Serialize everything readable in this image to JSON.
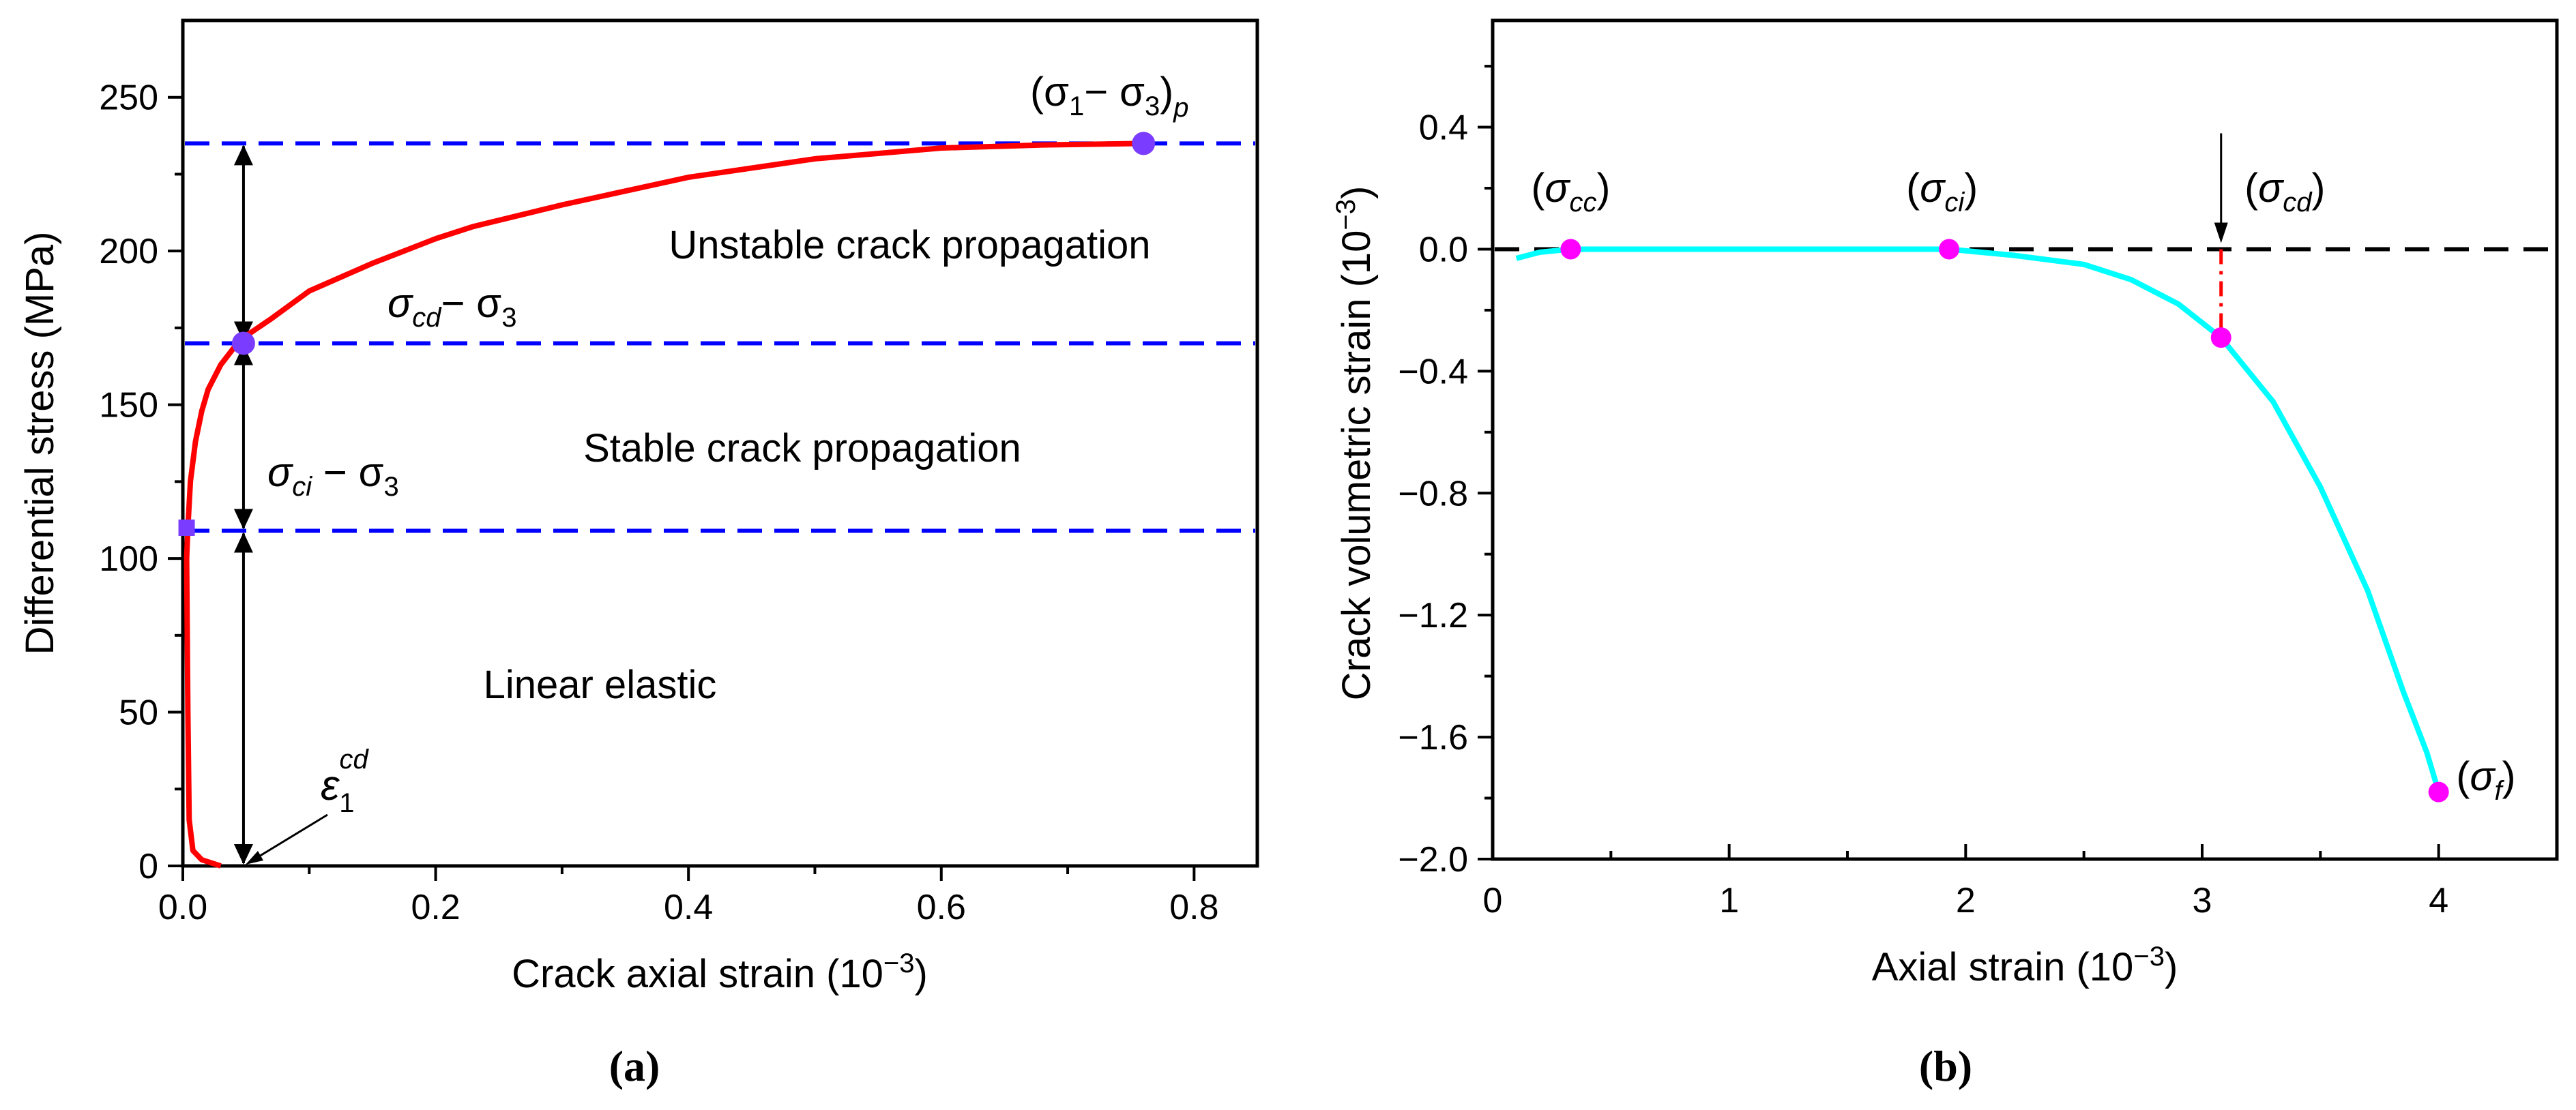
{
  "colors": {
    "axis": "#000000",
    "threshold": "#0000ff",
    "stress_curve": "#ff0000",
    "volumetric_curve": "#00ffff",
    "marker_purple": "#7a3cff",
    "marker_magenta": "#ff00ff",
    "cd_drop": "#ff0000"
  },
  "chart_data": [
    {
      "panel": "a",
      "panel_label": "(a)",
      "type": "line",
      "xlabel": "Crack axial strain (10",
      "xlabel_exp": "−3",
      "xlabel_tail": ")",
      "ylabel": "Differential stress (MPa)",
      "xlim": [
        0,
        0.85
      ],
      "ylim": [
        0,
        275
      ],
      "xticks": [
        {
          "v": 0,
          "t": "0.0"
        },
        {
          "v": 0.2,
          "t": "0.2"
        },
        {
          "v": 0.4,
          "t": "0.4"
        },
        {
          "v": 0.6,
          "t": "0.6"
        },
        {
          "v": 0.8,
          "t": "0.8"
        }
      ],
      "xminor": [
        0.1,
        0.3,
        0.5,
        0.7
      ],
      "yticks": [
        {
          "v": 0,
          "t": "0"
        },
        {
          "v": 50,
          "t": "50"
        },
        {
          "v": 100,
          "t": "100"
        },
        {
          "v": 150,
          "t": "150"
        },
        {
          "v": 200,
          "t": "200"
        },
        {
          "v": 250,
          "t": "250"
        }
      ],
      "yminor": [
        25,
        75,
        125,
        175,
        225
      ],
      "series": [
        {
          "name": "Differential stress",
          "x": [
            0.03,
            0.015,
            0.008,
            0.005,
            0.004,
            0.003,
            0.004,
            0.006,
            0.01,
            0.015,
            0.02,
            0.03,
            0.045,
            0.07,
            0.1,
            0.15,
            0.2,
            0.23,
            0.3,
            0.4,
            0.5,
            0.6,
            0.68,
            0.76
          ],
          "y": [
            0,
            2,
            5,
            15,
            50,
            100,
            110,
            125,
            138,
            148,
            155,
            163,
            171,
            178,
            187,
            196,
            204,
            208,
            215,
            224,
            230,
            233.5,
            234.5,
            235
          ]
        }
      ],
      "thresholds": [
        {
          "name": "peak",
          "y": 235
        },
        {
          "name": "damage",
          "y": 170
        },
        {
          "name": "initiation",
          "y": 109
        }
      ],
      "markers": [
        {
          "name": "initiation",
          "x": 0.003,
          "y": 110,
          "shape": "square"
        },
        {
          "name": "damage",
          "x": 0.048,
          "y": 170,
          "shape": "circle"
        },
        {
          "name": "peak",
          "x": 0.76,
          "y": 235,
          "shape": "circle"
        }
      ],
      "arrow_x": 0.048,
      "regions": [
        {
          "text": "Unstable crack propagation",
          "x": 0.575,
          "y": 202
        },
        {
          "text": "Stable crack propagation",
          "x": 0.49,
          "y": 136
        },
        {
          "text": "Linear elastic",
          "x": 0.33,
          "y": 59
        }
      ],
      "annotations": {
        "peak_label": {
          "base": "(σ",
          "sub1": "1",
          "mid": "− σ",
          "sub2": "3",
          "close": ")",
          "sub3": "p"
        },
        "cd_label": {
          "base": "σ",
          "sub1": "cd",
          "mid": "− σ",
          "sub2": "3"
        },
        "ci_label": {
          "base": "σ",
          "sub1": "ci",
          "mid": " − σ",
          "sub2": "3"
        },
        "eps_label": {
          "base": "ε",
          "sub": "1",
          "sup": "cd"
        }
      }
    },
    {
      "panel": "b",
      "panel_label": "(b)",
      "type": "line",
      "xlabel": "Axial strain (10",
      "xlabel_exp": "−3",
      "xlabel_tail": ")",
      "ylabel": "Crack volumetric strain (10",
      "ylabel_exp": "−3",
      "ylabel_tail": ")",
      "xlim": [
        0,
        4.5
      ],
      "ylim": [
        -2.0,
        0.75
      ],
      "xticks": [
        {
          "v": 0,
          "t": "0"
        },
        {
          "v": 1,
          "t": "1"
        },
        {
          "v": 2,
          "t": "2"
        },
        {
          "v": 3,
          "t": "3"
        },
        {
          "v": 4,
          "t": "4"
        }
      ],
      "xminor": [
        0.5,
        1.5,
        2.5,
        3.5
      ],
      "yticks": [
        {
          "v": 0.4,
          "t": "0.4"
        },
        {
          "v": 0,
          "t": "0.0"
        },
        {
          "v": -0.4,
          "t": "−0.4"
        },
        {
          "v": -0.8,
          "t": "−0.8"
        },
        {
          "v": -1.2,
          "t": "−1.2"
        },
        {
          "v": -1.6,
          "t": "−1.6"
        },
        {
          "v": -2.0,
          "t": "−2.0"
        }
      ],
      "yminor": [
        0.6,
        0.2,
        -0.2,
        -0.6,
        -1.0,
        -1.4,
        -1.8
      ],
      "series": [
        {
          "name": "Crack volumetric strain",
          "x": [
            0.1,
            0.2,
            0.33,
            0.6,
            1.0,
            1.5,
            1.93,
            2.2,
            2.5,
            2.7,
            2.9,
            3.08,
            3.3,
            3.5,
            3.7,
            3.85,
            3.95,
            4.0
          ],
          "y": [
            -0.03,
            -0.01,
            0,
            0,
            0,
            0,
            0,
            -0.02,
            -0.05,
            -0.1,
            -0.18,
            -0.29,
            -0.5,
            -0.78,
            -1.12,
            -1.45,
            -1.65,
            -1.78
          ]
        }
      ],
      "baseline_y": 0,
      "cd_drop": {
        "x": 3.08,
        "y_top": 0,
        "y_bottom": -0.29
      },
      "cd_arrow": {
        "x": 3.08,
        "y_from": 0.38,
        "y_to": 0.02
      },
      "markers": [
        {
          "name": "cc",
          "x": 0.33,
          "y": 0
        },
        {
          "name": "ci",
          "x": 1.93,
          "y": 0
        },
        {
          "name": "cd",
          "x": 3.08,
          "y": -0.29
        },
        {
          "name": "f",
          "x": 4.0,
          "y": -1.78
        }
      ],
      "labels": [
        {
          "name": "cc",
          "sub": "cc",
          "x": 0.33,
          "y": 0.2
        },
        {
          "name": "ci",
          "sub": "ci",
          "x": 1.9,
          "y": 0.2
        },
        {
          "name": "cd",
          "sub": "cd",
          "x": 3.35,
          "y": 0.2
        },
        {
          "name": "f",
          "sub": "f",
          "x": 4.2,
          "y": -1.73
        }
      ]
    }
  ]
}
